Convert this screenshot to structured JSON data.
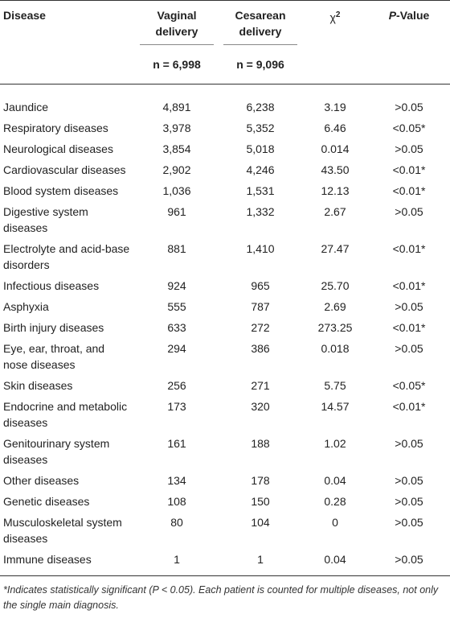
{
  "table": {
    "header": {
      "disease": "Disease",
      "vaginal": "Vaginal delivery",
      "cesarean": "Cesarean delivery",
      "chi": "χ",
      "chi_sup": "2",
      "p_italic": "P",
      "p_rest": "-Value",
      "n_vaginal": "n = 6,998",
      "n_cesarean": "n = 9,096"
    },
    "rows": [
      [
        "Jaundice",
        "4,891",
        "6,238",
        "3.19",
        ">0.05"
      ],
      [
        "Respiratory diseases",
        "3,978",
        "5,352",
        "6.46",
        "<0.05*"
      ],
      [
        "Neurological diseases",
        "3,854",
        "5,018",
        "0.014",
        ">0.05"
      ],
      [
        "Cardiovascular diseases",
        "2,902",
        "4,246",
        "43.50",
        "<0.01*"
      ],
      [
        "Blood system diseases",
        "1,036",
        "1,531",
        "12.13",
        "<0.01*"
      ],
      [
        "Digestive system diseases",
        "961",
        "1,332",
        "2.67",
        ">0.05"
      ],
      [
        "Electrolyte and acid-base disorders",
        "881",
        "1,410",
        "27.47",
        "<0.01*"
      ],
      [
        "Infectious diseases",
        "924",
        "965",
        "25.70",
        "<0.01*"
      ],
      [
        "Asphyxia",
        "555",
        "787",
        "2.69",
        ">0.05"
      ],
      [
        "Birth injury diseases",
        "633",
        "272",
        "273.25",
        "<0.01*"
      ],
      [
        "Eye, ear, throat, and nose diseases",
        "294",
        "386",
        "0.018",
        ">0.05"
      ],
      [
        "Skin diseases",
        "256",
        "271",
        "5.75",
        "<0.05*"
      ],
      [
        "Endocrine and metabolic diseases",
        "173",
        "320",
        "14.57",
        "<0.01*"
      ],
      [
        "Genitourinary system diseases",
        "161",
        "188",
        "1.02",
        ">0.05"
      ],
      [
        "Other diseases",
        "134",
        "178",
        "0.04",
        ">0.05"
      ],
      [
        "Genetic diseases",
        "108",
        "150",
        "0.28",
        ">0.05"
      ],
      [
        "Musculoskeletal system diseases",
        "80",
        "104",
        "0",
        ">0.05"
      ],
      [
        "Immune diseases",
        "1",
        "1",
        "0.04",
        ">0.05"
      ]
    ]
  },
  "footnote": "*Indicates statistically significant (P < 0.05). Each patient is counted for multiple diseases, not only the single main diagnosis."
}
